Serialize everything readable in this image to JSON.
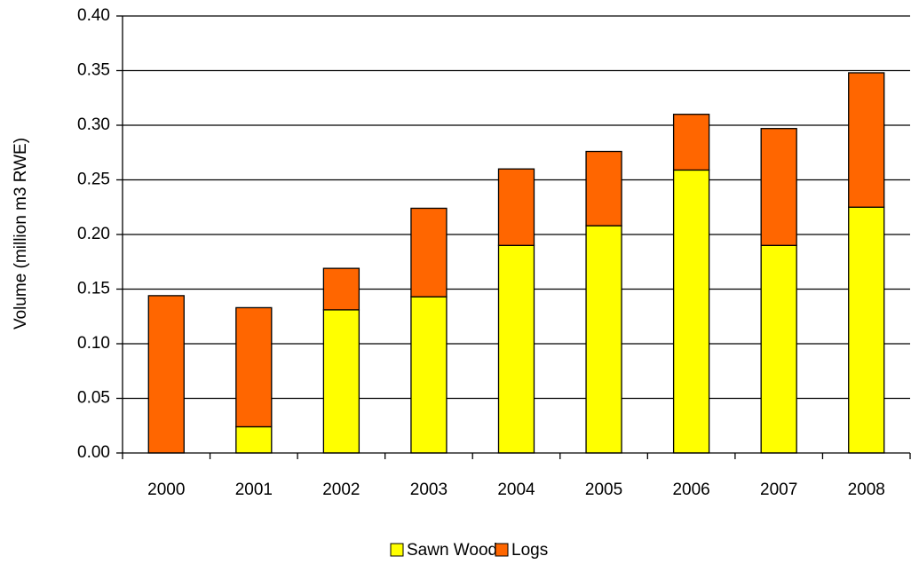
{
  "colors": {
    "sawn_wood": "#FFFF00",
    "logs": "#FF6600",
    "gridline": "#000000",
    "bar_outline": "#000000"
  },
  "chart_data": {
    "type": "bar",
    "stacked": true,
    "title": "",
    "xlabel": "",
    "ylabel": "Volume (million m3 RWE)",
    "categories": [
      "2000",
      "2001",
      "2002",
      "2003",
      "2004",
      "2005",
      "2006",
      "2007",
      "2008"
    ],
    "series": [
      {
        "name": "Sawn Wood",
        "values": [
          0.0,
          0.024,
          0.131,
          0.143,
          0.19,
          0.208,
          0.259,
          0.19,
          0.225
        ]
      },
      {
        "name": "Logs",
        "values": [
          0.144,
          0.109,
          0.038,
          0.081,
          0.07,
          0.068,
          0.051,
          0.107,
          0.123
        ]
      }
    ],
    "ylim": [
      0,
      0.4
    ],
    "yticks": [
      "0.00",
      "0.05",
      "0.10",
      "0.15",
      "0.20",
      "0.25",
      "0.30",
      "0.35",
      "0.40"
    ],
    "grid": true,
    "legend_position": "bottom"
  }
}
